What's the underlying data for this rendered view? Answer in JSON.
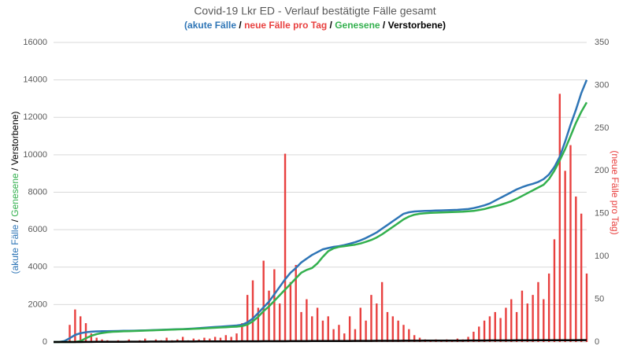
{
  "chart_data": {
    "type": "line",
    "title": "Covid-19 Lkr ED - Verlauf bestätigte Fälle gesamt",
    "label_parts": {
      "open": "(",
      "separator": " / ",
      "close": ")"
    },
    "ylim": [
      0,
      16000
    ],
    "yticks": [
      0,
      2000,
      4000,
      6000,
      8000,
      10000,
      12000,
      14000,
      16000
    ],
    "y2lim": [
      0,
      350
    ],
    "y2ticks": [
      0,
      50,
      100,
      150,
      200,
      250,
      300,
      350
    ],
    "grid": true,
    "series": [
      {
        "name": "akute Fälle",
        "color": "#2e75b6",
        "type": "line",
        "values": [
          0,
          0,
          50,
          200,
          380,
          470,
          520,
          550,
          565,
          575,
          580,
          585,
          590,
          595,
          600,
          605,
          612,
          620,
          630,
          640,
          650,
          660,
          670,
          680,
          690,
          700,
          720,
          740,
          760,
          780,
          800,
          820,
          840,
          860,
          880,
          920,
          1050,
          1250,
          1550,
          1850,
          2150,
          2550,
          2950,
          3350,
          3700,
          3950,
          4250,
          4450,
          4650,
          4800,
          4950,
          5020,
          5080,
          5120,
          5180,
          5250,
          5330,
          5430,
          5550,
          5700,
          5850,
          6050,
          6250,
          6450,
          6650,
          6850,
          6930,
          6970,
          6990,
          7000,
          7010,
          7020,
          7030,
          7040,
          7050,
          7060,
          7080,
          7100,
          7150,
          7220,
          7300,
          7400,
          7550,
          7700,
          7850,
          8000,
          8150,
          8270,
          8370,
          8450,
          8550,
          8700,
          8950,
          9350,
          9900,
          10700,
          11600,
          12400,
          13300,
          14000
        ]
      },
      {
        "name": "neue Fälle pro Tag",
        "color": "#e8403f",
        "type": "bar",
        "axis": "y2",
        "values": [
          0,
          0,
          1,
          20,
          38,
          30,
          22,
          10,
          5,
          3,
          2,
          1,
          2,
          1,
          3,
          1,
          2,
          4,
          1,
          3,
          2,
          5,
          2,
          3,
          6,
          2,
          4,
          3,
          5,
          4,
          6,
          5,
          8,
          6,
          10,
          22,
          55,
          72,
          40,
          95,
          60,
          85,
          45,
          220,
          70,
          90,
          35,
          50,
          30,
          40,
          25,
          30,
          15,
          20,
          10,
          30,
          15,
          40,
          25,
          55,
          45,
          70,
          35,
          30,
          25,
          20,
          15,
          8,
          5,
          3,
          2,
          3,
          2,
          3,
          2,
          4,
          3,
          6,
          12,
          18,
          25,
          30,
          35,
          28,
          40,
          50,
          35,
          60,
          45,
          55,
          70,
          50,
          80,
          120,
          290,
          200,
          230,
          170,
          150,
          80
        ]
      },
      {
        "name": "Genesene",
        "color": "#33b04e",
        "type": "line",
        "values": [
          0,
          0,
          0,
          0,
          0,
          50,
          200,
          330,
          420,
          480,
          520,
          545,
          560,
          570,
          580,
          590,
          600,
          610,
          620,
          630,
          640,
          650,
          660,
          670,
          680,
          690,
          700,
          715,
          730,
          745,
          760,
          775,
          790,
          805,
          820,
          850,
          930,
          1100,
          1350,
          1650,
          1900,
          2200,
          2500,
          2800,
          3100,
          3400,
          3700,
          3850,
          3950,
          4200,
          4550,
          4850,
          5000,
          5080,
          5120,
          5160,
          5200,
          5260,
          5350,
          5450,
          5580,
          5750,
          5950,
          6150,
          6350,
          6550,
          6700,
          6800,
          6850,
          6880,
          6900,
          6910,
          6920,
          6930,
          6940,
          6950,
          6960,
          6980,
          7000,
          7050,
          7100,
          7180,
          7250,
          7330,
          7420,
          7520,
          7650,
          7800,
          7950,
          8100,
          8250,
          8400,
          8700,
          9150,
          9700,
          10300,
          11000,
          11700,
          12300,
          12800
        ]
      },
      {
        "name": "Verstorbene",
        "color": "#000000",
        "type": "line",
        "values": [
          0,
          0,
          0,
          0,
          0,
          2,
          4,
          6,
          8,
          10,
          11,
          12,
          13,
          14,
          15,
          16,
          17,
          18,
          19,
          20,
          21,
          22,
          23,
          24,
          25,
          26,
          27,
          28,
          29,
          30,
          31,
          32,
          33,
          34,
          35,
          36,
          37,
          38,
          39,
          40,
          41,
          42,
          43,
          44,
          45,
          46,
          47,
          48,
          49,
          50,
          51,
          52,
          53,
          54,
          55,
          56,
          57,
          58,
          59,
          60,
          61,
          62,
          63,
          64,
          65,
          66,
          67,
          68,
          69,
          70,
          71,
          72,
          73,
          74,
          75,
          76,
          77,
          78,
          79,
          80,
          81,
          82,
          83,
          84,
          85,
          86,
          87,
          88,
          89,
          90,
          91,
          92,
          93,
          94,
          95,
          96,
          97,
          98,
          99,
          100
        ]
      }
    ]
  }
}
